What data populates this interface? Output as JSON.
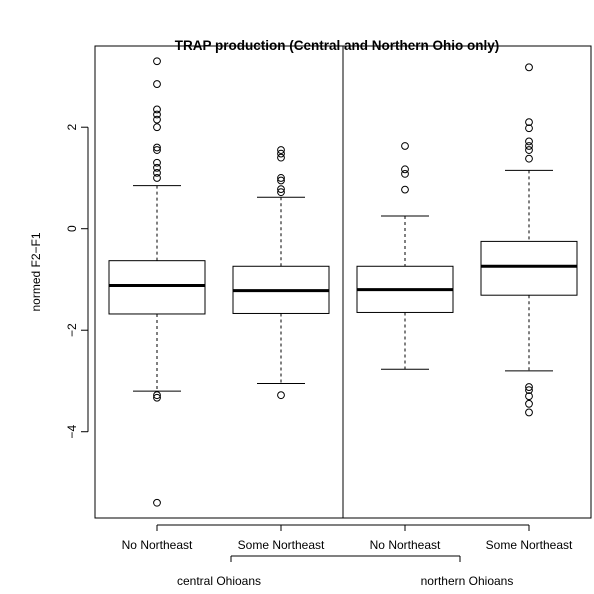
{
  "chart_data": {
    "type": "box",
    "title": "TRAP  production (Central and Northern Ohio only)",
    "ylabel": "normed F2−F1",
    "xlabel": "",
    "ylim": [
      -5.7,
      3.6
    ],
    "yticks": [
      2,
      0,
      -2,
      -4
    ],
    "ytick_labels": [
      "2",
      "0",
      "−2",
      "−4"
    ],
    "grid": false,
    "categories": [
      "No Northeast",
      "Some Northeast",
      "No Northeast",
      "Some Northeast"
    ],
    "groups": [
      {
        "label": "central Ohioans",
        "categories": [
          0,
          1
        ]
      },
      {
        "label": "northern Ohioans",
        "categories": [
          2,
          3
        ]
      }
    ],
    "boxes": [
      {
        "category": "No Northeast",
        "group": "central Ohioans",
        "lower_whisker": -3.2,
        "q1": -1.68,
        "median": -1.12,
        "q3": -0.63,
        "upper_whisker": 0.85,
        "outliers": [
          3.3,
          2.85,
          2.35,
          2.25,
          2.15,
          2.0,
          1.6,
          1.55,
          1.3,
          1.2,
          1.1,
          1.0,
          -3.28,
          -3.33,
          -5.4
        ]
      },
      {
        "category": "Some Northeast",
        "group": "central Ohioans",
        "lower_whisker": -3.05,
        "q1": -1.67,
        "median": -1.22,
        "q3": -0.74,
        "upper_whisker": 0.62,
        "outliers": [
          1.55,
          1.48,
          1.4,
          1.0,
          0.95,
          0.78,
          0.72,
          -3.28
        ]
      },
      {
        "category": "No Northeast",
        "group": "northern Ohioans",
        "lower_whisker": -2.77,
        "q1": -1.65,
        "median": -1.2,
        "q3": -0.74,
        "upper_whisker": 0.25,
        "outliers": [
          1.63,
          1.17,
          1.08,
          0.77
        ]
      },
      {
        "category": "Some Northeast",
        "group": "northern Ohioans",
        "lower_whisker": -2.8,
        "q1": -1.31,
        "median": -0.74,
        "q3": -0.25,
        "upper_whisker": 1.15,
        "outliers": [
          3.18,
          2.1,
          1.98,
          1.72,
          1.63,
          1.55,
          1.38,
          -3.12,
          -3.18,
          -3.3,
          -3.45,
          -3.62
        ]
      }
    ]
  }
}
